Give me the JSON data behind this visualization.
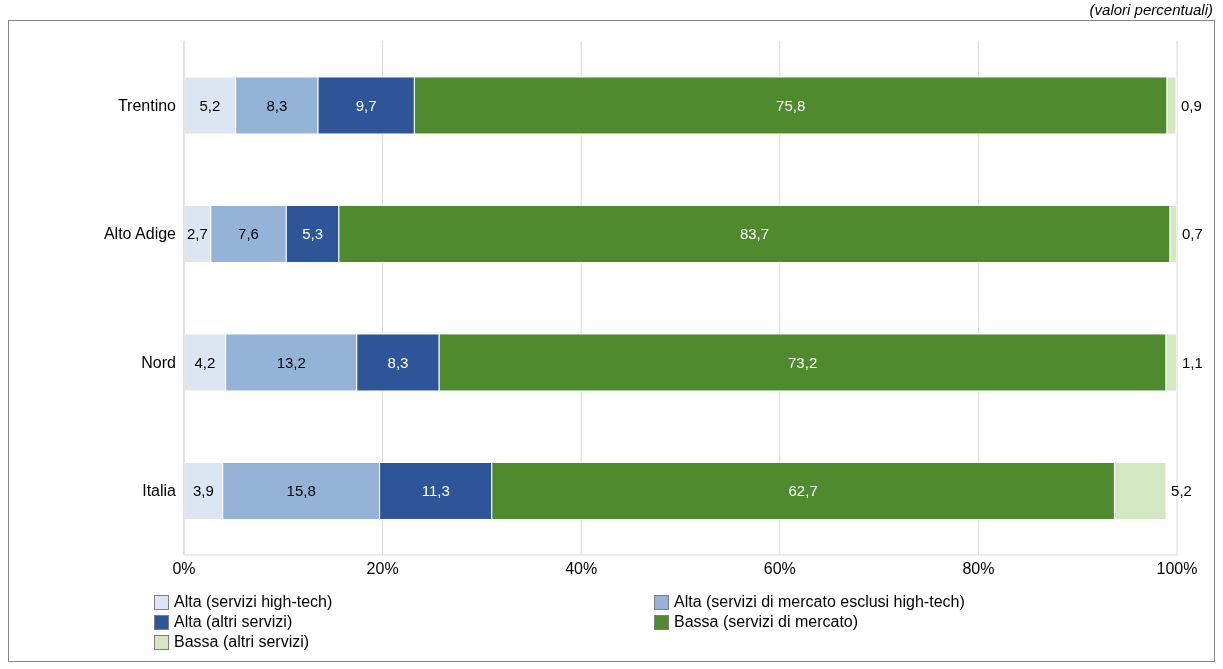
{
  "chart_data": {
    "type": "bar",
    "orientation": "horizontal",
    "stacked": true,
    "categories": [
      "Trentino",
      "Alto Adige",
      "Nord",
      "Italia"
    ],
    "series": [
      {
        "name": "Alta (servizi high-tech)",
        "color": "#dce6f2",
        "values": [
          5.2,
          2.7,
          4.2,
          3.9
        ],
        "value_labels": [
          "5,2",
          "2,7",
          "4,2",
          "3,9"
        ]
      },
      {
        "name": "Alta (servizi di mercato esclusi high-tech)",
        "color": "#95b3d7",
        "values": [
          8.3,
          7.6,
          13.2,
          15.8
        ],
        "value_labels": [
          "8,3",
          "7,6",
          "13,2",
          "15,8"
        ]
      },
      {
        "name": "Alta (altri servizi)",
        "color": "#2e5597",
        "values": [
          9.7,
          5.3,
          8.3,
          11.3
        ],
        "value_labels": [
          "9,7",
          "5,3",
          "8,3",
          "11,3"
        ]
      },
      {
        "name": "Bassa (servizi di mercato)",
        "color": "#4f8a2f",
        "values": [
          75.8,
          83.7,
          73.2,
          62.7
        ],
        "value_labels": [
          "75,8",
          "83,7",
          "73,2",
          "62,7"
        ]
      },
      {
        "name": "Bassa (altri servizi)",
        "color": "#d3e8c2",
        "values": [
          0.9,
          0.7,
          1.1,
          5.2
        ],
        "value_labels": [
          "0,9",
          "0,7",
          "1,1",
          "5,2"
        ]
      }
    ],
    "xlim": [
      0,
      100
    ],
    "xticks": [
      {
        "value": 0,
        "label": "0%"
      },
      {
        "value": 20,
        "label": "20%"
      },
      {
        "value": 40,
        "label": "40%"
      },
      {
        "value": 60,
        "label": "60%"
      },
      {
        "value": 80,
        "label": "80%"
      },
      {
        "value": 100,
        "label": "100%"
      }
    ],
    "grid": "x",
    "legend": "bottom",
    "annotations": [
      "(valori percentuali)"
    ]
  }
}
